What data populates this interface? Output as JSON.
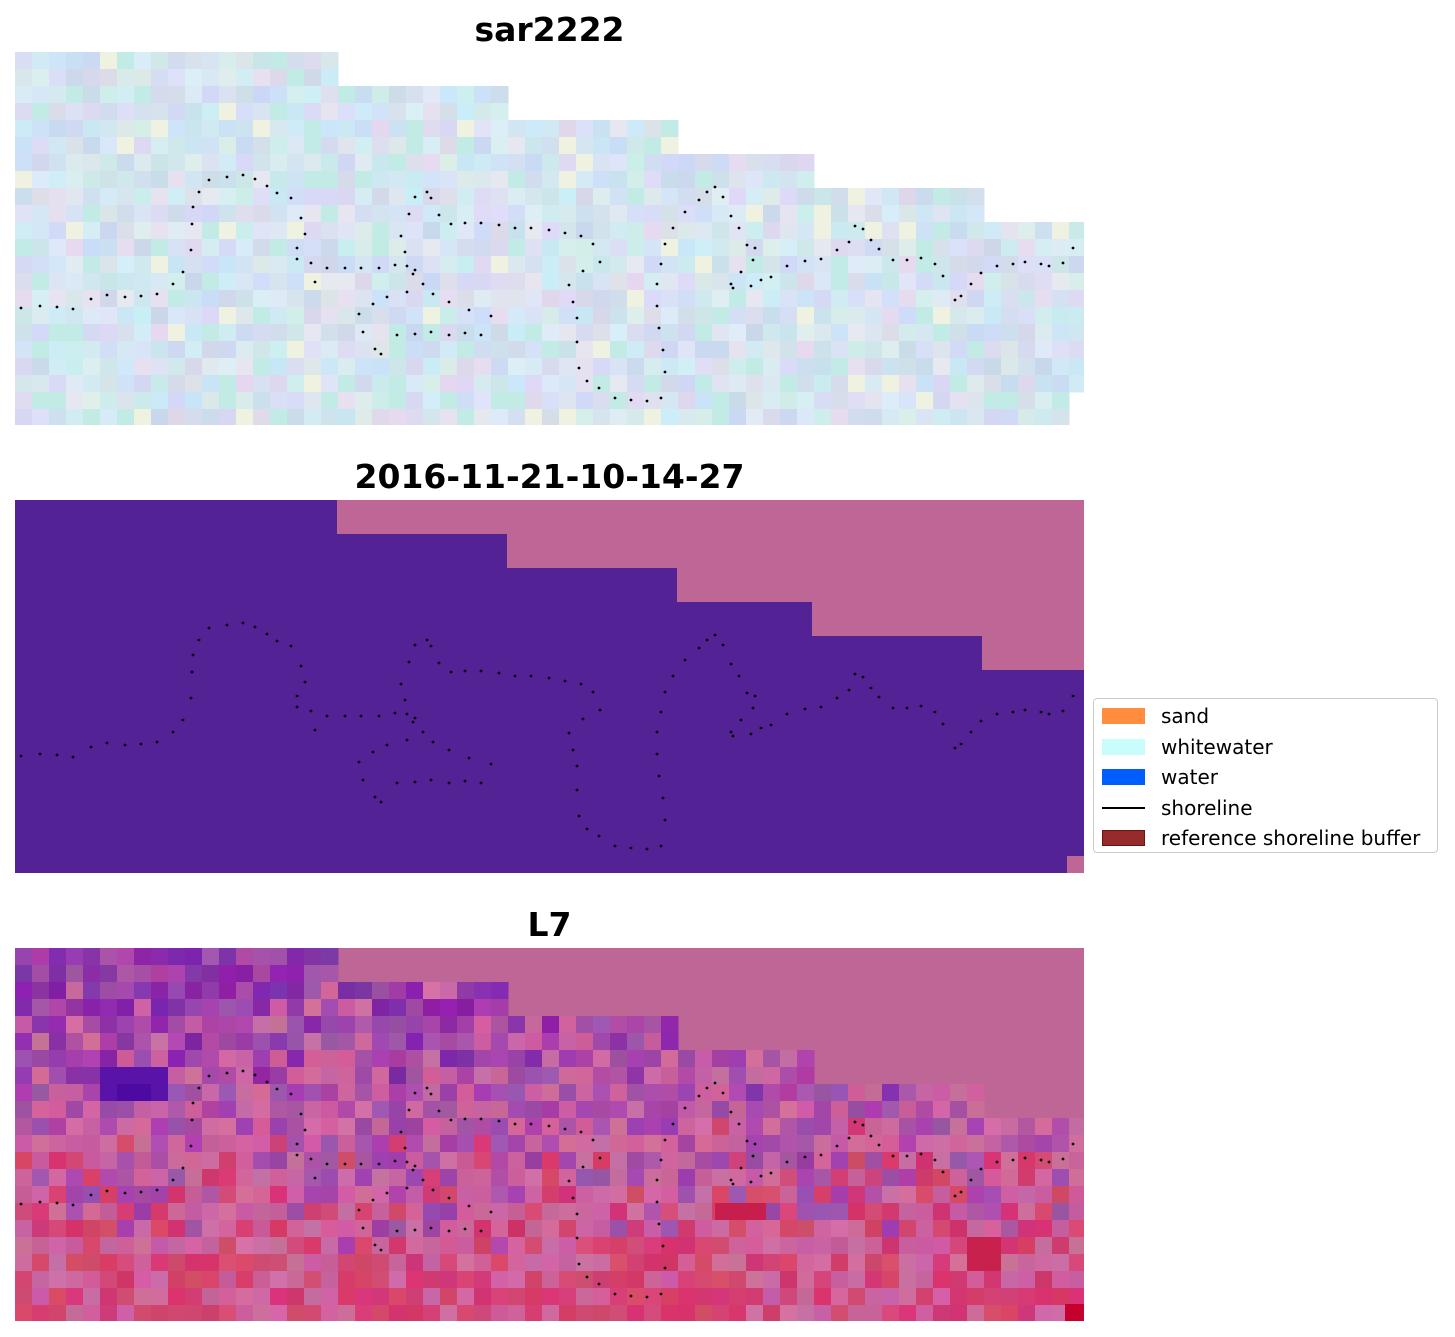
{
  "panels": [
    {
      "title": "sar2222",
      "style": "rgb-pale"
    },
    {
      "title": "2016-11-21-10-14-27",
      "style": "classified"
    },
    {
      "title": "L7",
      "style": "index-map"
    }
  ],
  "legend": {
    "items": [
      {
        "label": "sand",
        "kind": "patch",
        "color": "#ff8c3f"
      },
      {
        "label": "whitewater",
        "kind": "patch",
        "color": "#c9fdfb"
      },
      {
        "label": "water",
        "kind": "patch",
        "color": "#005eff"
      },
      {
        "label": "shoreline",
        "kind": "line",
        "color": "#000000"
      },
      {
        "label": "reference shoreline buffer",
        "kind": "patch",
        "color": "#962b2b",
        "edge": "#6b1414"
      }
    ]
  },
  "colors": {
    "no_data_pink": "#be6696",
    "classified_purple": "#532396",
    "shoreline_dots": "#000000"
  }
}
